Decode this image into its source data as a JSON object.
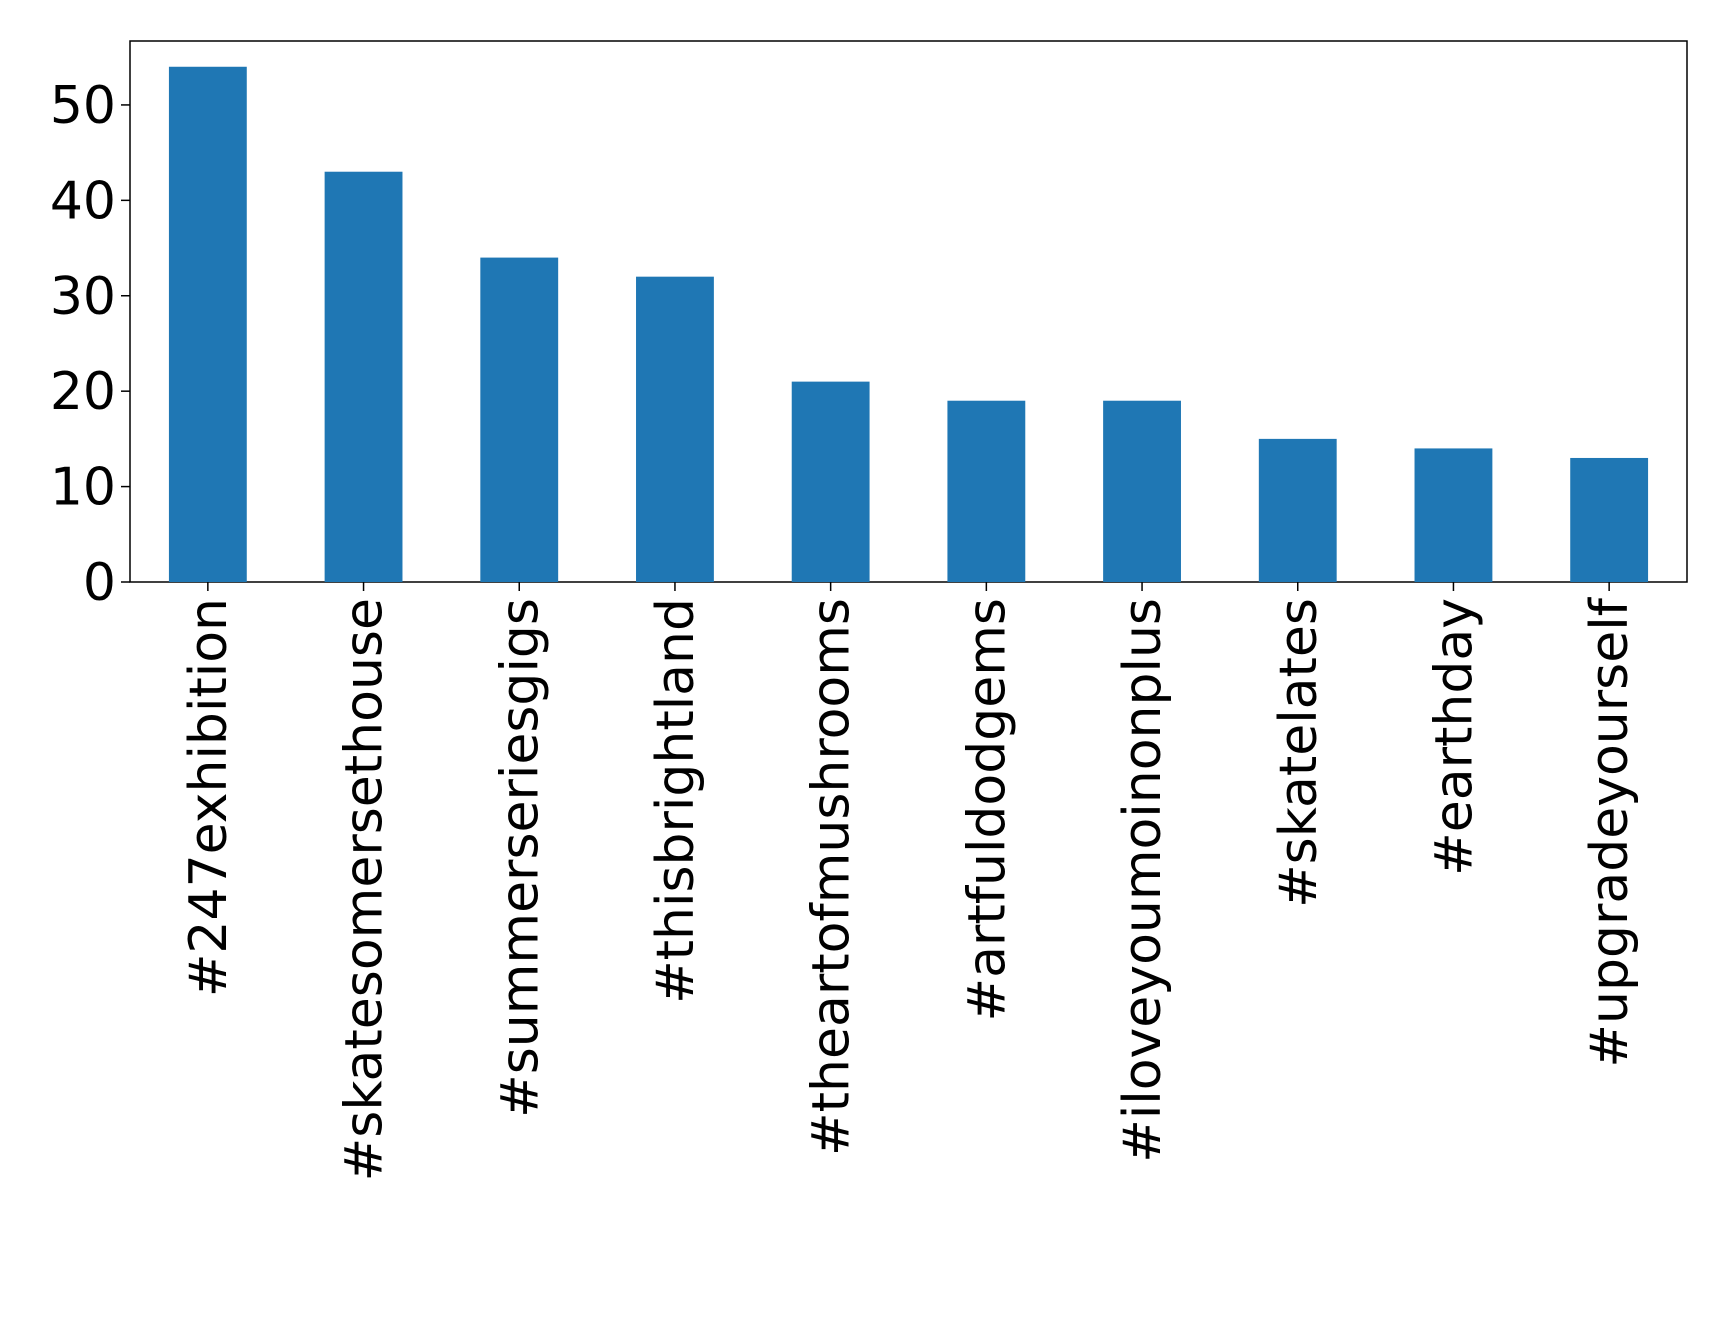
{
  "chart_data": {
    "type": "bar",
    "categories": [
      "#247exhibition",
      "#skatesomersethouse",
      "#summerseriesgigs",
      "#thisbrightland",
      "#theartofmushrooms",
      "#artfuldodgems",
      "#iloveyoumoinonplus",
      "#skatelates",
      "#earthday",
      "#upgradeyourself"
    ],
    "values": [
      54,
      43,
      34,
      32,
      21,
      19,
      19,
      15,
      14,
      13
    ],
    "color": "#1f77b4",
    "ylim": [
      0,
      56.7
    ],
    "yticks": [
      0,
      10,
      20,
      30,
      40,
      50
    ],
    "grid": false
  }
}
